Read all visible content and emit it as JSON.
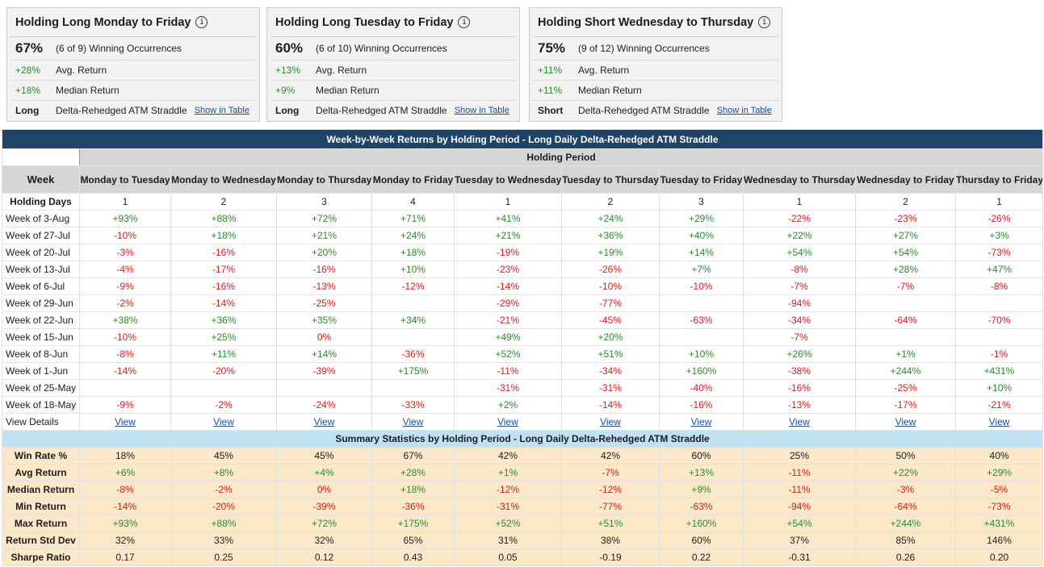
{
  "cards": [
    {
      "title": "Holding Long Monday to Friday",
      "info_glyph": "i",
      "rate": "67%",
      "occurrences": "(6 of 9) Winning Occurrences",
      "avg_value": "+28%",
      "avg_label": "Avg. Return",
      "median_value": "+18%",
      "median_label": "Median Return",
      "direction": "Long",
      "strategy": "Delta-Rehedged ATM Straddle",
      "link": "Show in Table"
    },
    {
      "title": "Holding Long Tuesday to Friday",
      "info_glyph": "i",
      "rate": "60%",
      "occurrences": "(6 of 10) Winning Occurrences",
      "avg_value": "+13%",
      "avg_label": "Avg. Return",
      "median_value": "+9%",
      "median_label": "Median Return",
      "direction": "Long",
      "strategy": "Delta-Rehedged ATM Straddle",
      "link": "Show in Table"
    },
    {
      "title": "Holding Short Wednesday to Thursday",
      "info_glyph": "i",
      "rate": "75%",
      "occurrences": "(9 of 12) Winning Occurrences",
      "avg_value": "+11%",
      "avg_label": "Avg. Return",
      "median_value": "+11%",
      "median_label": "Median Return",
      "direction": "Short",
      "strategy": "Delta-Rehedged ATM Straddle",
      "link": "Show in Table"
    }
  ],
  "table": {
    "title": "Week-by-Week Returns by Holding Period - Long Daily Delta-Rehedged ATM Straddle",
    "holding_period_label": "Holding Period",
    "week_header": "Week",
    "periods": [
      "Monday to Tuesday",
      "Monday to Wednesday",
      "Monday to Thursday",
      "Monday to Friday",
      "Tuesday to Wednesday",
      "Tuesday to Thursday",
      "Tuesday to Friday",
      "Wednesday to Thursday",
      "Wednesday to Friday",
      "Thursday to Friday"
    ],
    "holding_days_label": "Holding Days",
    "holding_days": [
      "1",
      "2",
      "3",
      "4",
      "1",
      "2",
      "3",
      "1",
      "2",
      "1"
    ],
    "weeks": [
      {
        "label": "Week of 3-Aug",
        "values": [
          "+93%",
          "+88%",
          "+72%",
          "+71%",
          "+41%",
          "+24%",
          "+29%",
          "-22%",
          "-23%",
          "-26%"
        ]
      },
      {
        "label": "Week of 27-Jul",
        "values": [
          "-10%",
          "+18%",
          "+21%",
          "+24%",
          "+21%",
          "+36%",
          "+40%",
          "+22%",
          "+27%",
          "+3%"
        ]
      },
      {
        "label": "Week of 20-Jul",
        "values": [
          "-3%",
          "-16%",
          "+20%",
          "+18%",
          "-19%",
          "+19%",
          "+14%",
          "+54%",
          "+54%",
          "-73%"
        ]
      },
      {
        "label": "Week of 13-Jul",
        "values": [
          "-4%",
          "-17%",
          "-16%",
          "+10%",
          "-23%",
          "-26%",
          "+7%",
          "-8%",
          "+28%",
          "+47%"
        ]
      },
      {
        "label": "Week of 6-Jul",
        "values": [
          "-9%",
          "-16%",
          "-13%",
          "-12%",
          "-14%",
          "-10%",
          "-10%",
          "-7%",
          "-7%",
          "-8%"
        ]
      },
      {
        "label": "Week of 29-Jun",
        "values": [
          "-2%",
          "-14%",
          "-25%",
          "",
          "-29%",
          "-77%",
          "",
          "-94%",
          "",
          ""
        ]
      },
      {
        "label": "Week of 22-Jun",
        "values": [
          "+38%",
          "+36%",
          "+35%",
          "+34%",
          "-21%",
          "-45%",
          "-63%",
          "-34%",
          "-64%",
          "-70%"
        ]
      },
      {
        "label": "Week of 15-Jun",
        "values": [
          "-10%",
          "+25%",
          "0%",
          "",
          "+49%",
          "+20%",
          "",
          "-7%",
          "",
          ""
        ]
      },
      {
        "label": "Week of 8-Jun",
        "values": [
          "-8%",
          "+11%",
          "+14%",
          "-36%",
          "+52%",
          "+51%",
          "+10%",
          "+26%",
          "+1%",
          "-1%"
        ]
      },
      {
        "label": "Week of 1-Jun",
        "values": [
          "-14%",
          "-20%",
          "-39%",
          "+175%",
          "-11%",
          "-34%",
          "+160%",
          "-38%",
          "+244%",
          "+431%"
        ]
      },
      {
        "label": "Week of 25-May",
        "values": [
          "",
          "",
          "",
          "",
          "-31%",
          "-31%",
          "-40%",
          "-16%",
          "-25%",
          "+10%"
        ]
      },
      {
        "label": "Week of 18-May",
        "values": [
          "-9%",
          "-2%",
          "-24%",
          "-33%",
          "+2%",
          "-14%",
          "-16%",
          "-13%",
          "-17%",
          "-21%"
        ]
      }
    ],
    "view_details_label": "View Details",
    "view_link": "View"
  },
  "summary": {
    "title": "Summary Statistics by Holding Period - Long Daily Delta-Rehedged ATM Straddle",
    "rows": [
      {
        "label": "Win Rate %",
        "colored": false,
        "values": [
          "18%",
          "45%",
          "45%",
          "67%",
          "42%",
          "42%",
          "60%",
          "25%",
          "50%",
          "40%"
        ]
      },
      {
        "label": "Avg Return",
        "colored": true,
        "values": [
          "+6%",
          "+8%",
          "+4%",
          "+28%",
          "+1%",
          "-7%",
          "+13%",
          "-11%",
          "+22%",
          "+29%"
        ]
      },
      {
        "label": "Median Return",
        "colored": true,
        "values": [
          "-8%",
          "-2%",
          "0%",
          "+18%",
          "-12%",
          "-12%",
          "+9%",
          "-11%",
          "-3%",
          "-5%"
        ]
      },
      {
        "label": "Min Return",
        "colored": true,
        "values": [
          "-14%",
          "-20%",
          "-39%",
          "-36%",
          "-31%",
          "-77%",
          "-63%",
          "-94%",
          "-64%",
          "-73%"
        ]
      },
      {
        "label": "Max Return",
        "colored": true,
        "values": [
          "+93%",
          "+88%",
          "+72%",
          "+175%",
          "+52%",
          "+51%",
          "+160%",
          "+54%",
          "+244%",
          "+431%"
        ]
      },
      {
        "label": "Return Std Dev",
        "colored": false,
        "values": [
          "32%",
          "33%",
          "32%",
          "65%",
          "31%",
          "38%",
          "60%",
          "37%",
          "85%",
          "146%"
        ]
      },
      {
        "label": "Sharpe Ratio",
        "colored": false,
        "values": [
          "0.17",
          "0.25",
          "0.12",
          "0.43",
          "0.05",
          "-0.19",
          "0.22",
          "-0.31",
          "0.26",
          "0.20"
        ]
      }
    ]
  },
  "colors": {
    "positive": "#2e8b2e",
    "negative": "#d42020",
    "header_bg": "#1f4468",
    "summary_title_bg": "#bfe1f1",
    "summary_bg": "#fbe8c9"
  }
}
